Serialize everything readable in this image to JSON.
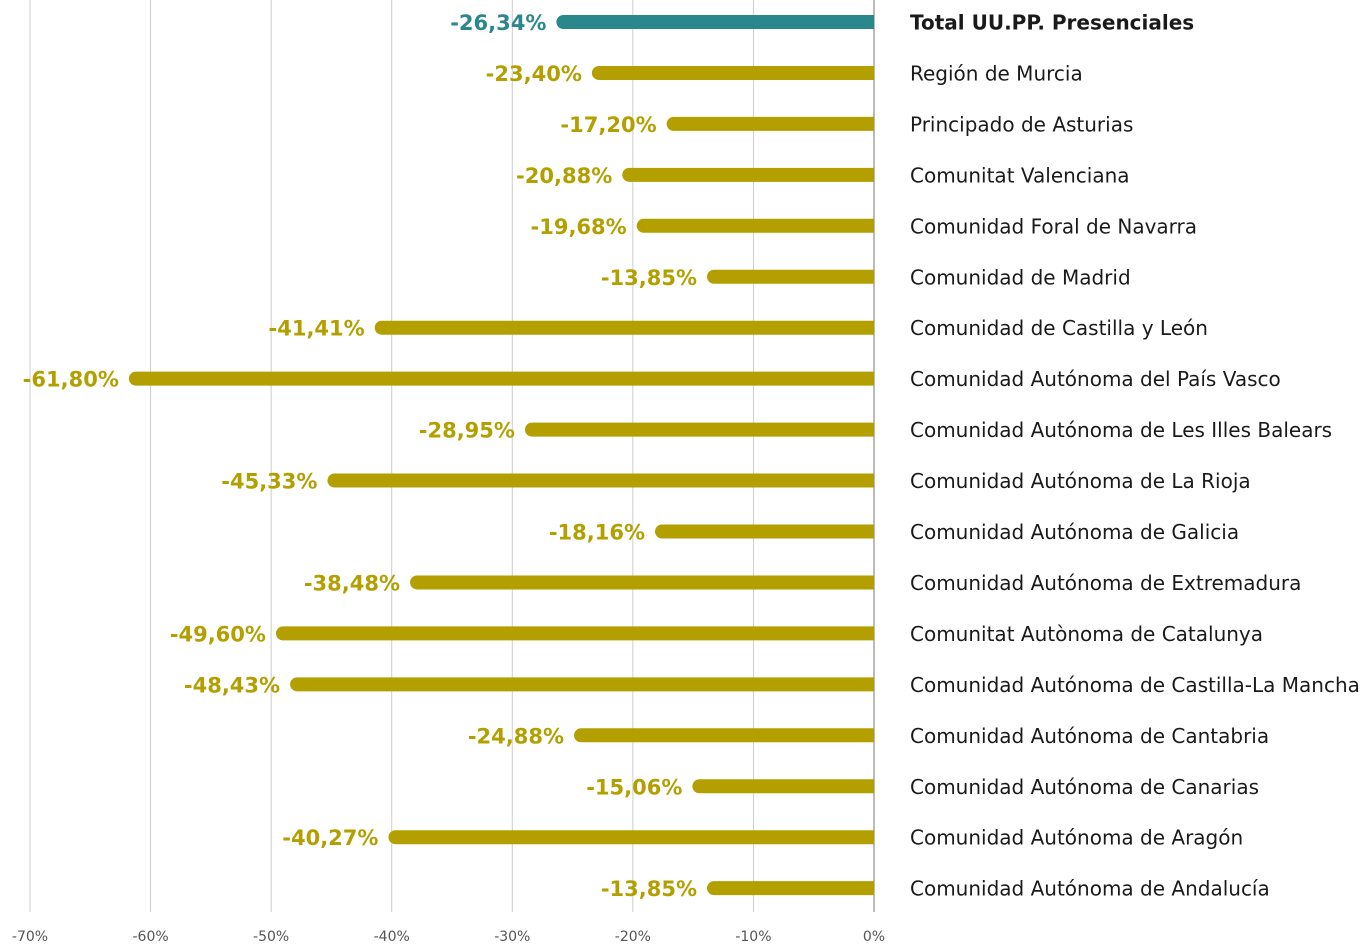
{
  "chart_data": {
    "type": "barh",
    "categories": [
      "Total UU.PP. Presenciales",
      "Región de Murcia",
      "Principado de Asturias",
      "Comunitat Valenciana",
      "Comunidad Foral de Navarra",
      "Comunidad de Madrid",
      "Comunidad de Castilla y León",
      "Comunidad Autónoma del País Vasco",
      "Comunidad Autónoma de Les Illes Balears",
      "Comunidad Autónoma de La Rioja",
      "Comunidad Autónoma de Galicia",
      "Comunidad Autónoma de Extremadura",
      "Comunitat Autònoma de Catalunya",
      "Comunidad Autónoma de Castilla-La Mancha",
      "Comunidad Autónoma de Cantabria",
      "Comunidad Autónoma de Canarias",
      "Comunidad Autónoma de Aragón",
      "Comunidad Autónoma de Andalucía"
    ],
    "values": [
      -26.34,
      -23.4,
      -17.2,
      -20.88,
      -19.68,
      -13.85,
      -41.41,
      -61.8,
      -28.95,
      -45.33,
      -18.16,
      -38.48,
      -49.6,
      -48.43,
      -24.88,
      -15.06,
      -40.27,
      -13.85
    ],
    "value_labels": [
      "-26,34%",
      "-23,40%",
      "-17,20%",
      "-20,88%",
      "-19,68%",
      "-13,85%",
      "-41,41%",
      "-61,80%",
      "-28,95%",
      "-45,33%",
      "-18,16%",
      "-38,48%",
      "-49,60%",
      "-48,43%",
      "-24,88%",
      "-15,06%",
      "-40,27%",
      "-13,85%"
    ],
    "colors": [
      "#2a878c",
      "#b39f00",
      "#b39f00",
      "#b39f00",
      "#b39f00",
      "#b39f00",
      "#b39f00",
      "#b39f00",
      "#b39f00",
      "#b39f00",
      "#b39f00",
      "#b39f00",
      "#b39f00",
      "#b39f00",
      "#b39f00",
      "#b39f00",
      "#b39f00",
      "#b39f00"
    ],
    "xlim": [
      -70,
      0
    ],
    "xticks": [
      {
        "value": -70,
        "label": "-70%"
      },
      {
        "value": -60,
        "label": "-60%"
      },
      {
        "value": -50,
        "label": "-50%"
      },
      {
        "value": -40,
        "label": "-40%"
      },
      {
        "value": -30,
        "label": "-30%"
      },
      {
        "value": -20,
        "label": "-20%"
      },
      {
        "value": -10,
        "label": "-10%"
      },
      {
        "value": 0,
        "label": "0%"
      }
    ],
    "grid": true
  }
}
